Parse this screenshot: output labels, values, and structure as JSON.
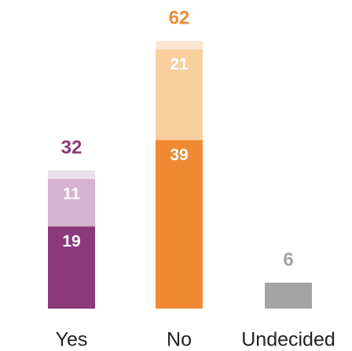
{
  "chart_data": {
    "type": "stacked-bar",
    "categories": [
      "Yes",
      "No",
      "Undecided"
    ],
    "series": [
      {
        "values": [
          19,
          39,
          6
        ],
        "colors": [
          "#8a3a7b",
          "#ef8a33",
          "#a3a3a3"
        ]
      },
      {
        "values": [
          11,
          21,
          null
        ],
        "colors": [
          "#d5b3d1",
          "#f8cf9f",
          "#a3a3a3"
        ]
      },
      {
        "values": [
          2,
          2,
          null
        ],
        "colors": [
          "#ece0ea",
          "#fbe6d2",
          "#a3a3a3"
        ]
      }
    ],
    "segment_labels": [
      [
        true,
        true,
        false
      ],
      [
        true,
        true,
        false
      ],
      [
        false,
        false,
        false
      ]
    ],
    "totals": [
      32,
      62,
      6
    ],
    "total_colors": [
      "#8a3a7b",
      "#ef8a33",
      "#a3a3a3"
    ],
    "ylim": [
      0,
      65
    ]
  }
}
